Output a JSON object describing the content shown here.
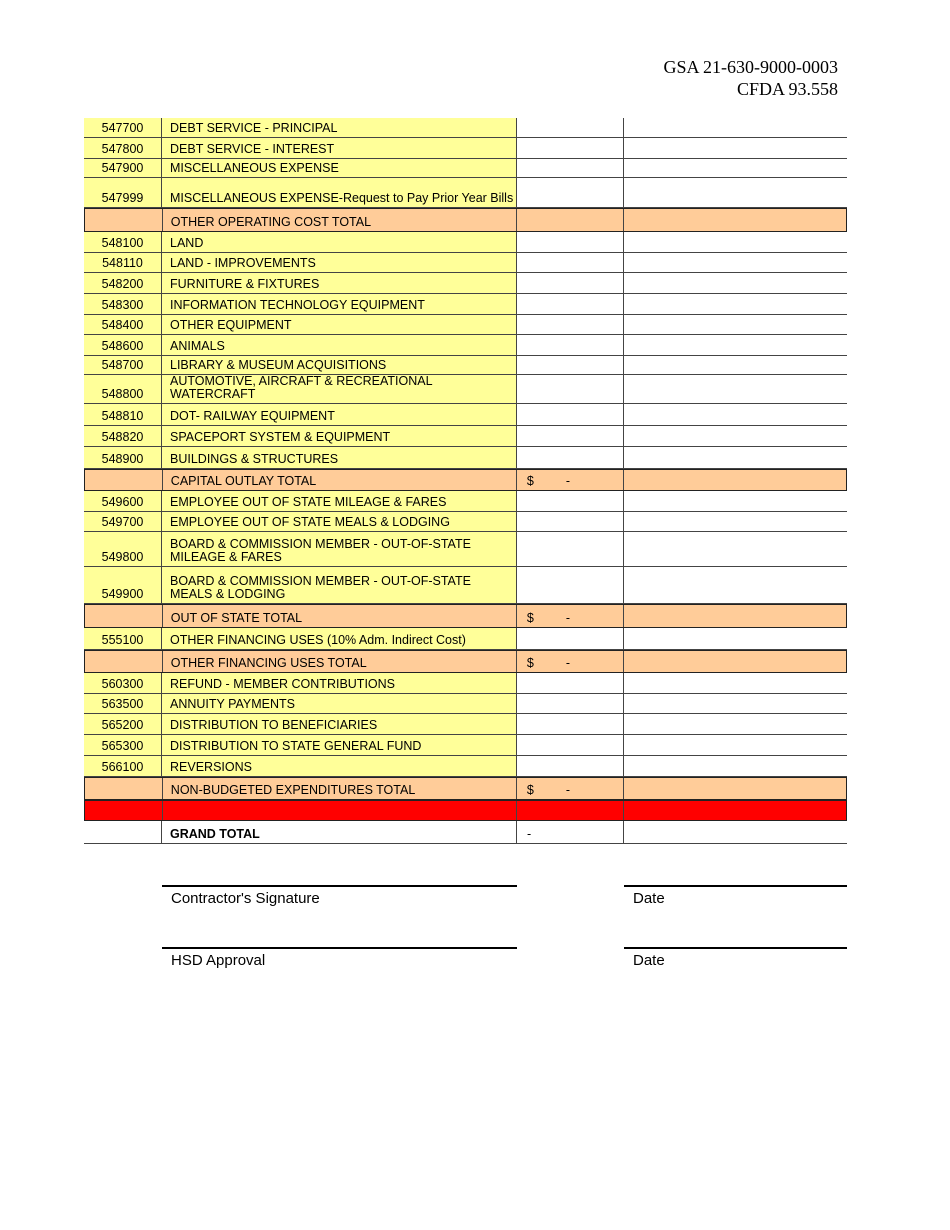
{
  "header": {
    "line1": "GSA 21-630-9000-0003",
    "line2": "CFDA 93.558"
  },
  "rows": [
    {
      "type": "data",
      "code": "547700",
      "label": "DEBT SERVICE - PRINCIPAL"
    },
    {
      "type": "data",
      "code": "547800",
      "label": "DEBT SERVICE - INTEREST"
    },
    {
      "type": "data",
      "code": "547900",
      "label": "MISCELLANEOUS EXPENSE"
    },
    {
      "type": "data",
      "code": "547999",
      "label": "MISCELLANEOUS EXPENSE-Request to Pay Prior Year Bills"
    },
    {
      "type": "total",
      "code": "",
      "label": "OTHER OPERATING COST TOTAL"
    },
    {
      "type": "data",
      "code": "548100",
      "label": "LAND"
    },
    {
      "type": "data",
      "code": "548110",
      "label": "LAND - IMPROVEMENTS"
    },
    {
      "type": "data",
      "code": "548200",
      "label": "FURNITURE & FIXTURES"
    },
    {
      "type": "data",
      "code": "548300",
      "label": "INFORMATION TECHNOLOGY EQUIPMENT"
    },
    {
      "type": "data",
      "code": "548400",
      "label": "OTHER EQUIPMENT"
    },
    {
      "type": "data",
      "code": "548600",
      "label": "ANIMALS"
    },
    {
      "type": "data",
      "code": "548700",
      "label": "LIBRARY & MUSEUM ACQUISITIONS"
    },
    {
      "type": "data",
      "code": "548800",
      "label": "AUTOMOTIVE, AIRCRAFT & RECREATIONAL WATERCRAFT"
    },
    {
      "type": "data",
      "code": "548810",
      "label": "DOT- RAILWAY EQUIPMENT"
    },
    {
      "type": "data",
      "code": "548820",
      "label": "SPACEPORT SYSTEM & EQUIPMENT"
    },
    {
      "type": "data",
      "code": "548900",
      "label": "BUILDINGS & STRUCTURES"
    },
    {
      "type": "total",
      "code": "",
      "label": "CAPITAL OUTLAY TOTAL",
      "currency": "$",
      "amount": "-"
    },
    {
      "type": "data",
      "code": "549600",
      "label": "EMPLOYEE OUT OF STATE MILEAGE & FARES"
    },
    {
      "type": "data",
      "code": "549700",
      "label": "EMPLOYEE OUT OF STATE MEALS & LODGING"
    },
    {
      "type": "data",
      "code": "549800",
      "label": "BOARD & COMMISSION MEMBER - OUT-OF-STATE MILEAGE & FARES"
    },
    {
      "type": "data",
      "code": "549900",
      "label": "BOARD & COMMISSION MEMBER - OUT-OF-STATE MEALS & LODGING"
    },
    {
      "type": "total",
      "code": "",
      "label": "OUT OF STATE TOTAL",
      "currency": "$",
      "amount": "-"
    },
    {
      "type": "data",
      "code": "555100",
      "label": "OTHER FINANCING USES (10% Adm. Indirect Cost)"
    },
    {
      "type": "total",
      "code": "",
      "label": "OTHER FINANCING USES TOTAL",
      "currency": "$",
      "amount": "-"
    },
    {
      "type": "data",
      "code": "560300",
      "label": "REFUND - MEMBER CONTRIBUTIONS"
    },
    {
      "type": "data",
      "code": "563500",
      "label": "ANNUITY PAYMENTS"
    },
    {
      "type": "data",
      "code": "565200",
      "label": "DISTRIBUTION TO BENEFICIARIES"
    },
    {
      "type": "data",
      "code": "565300",
      "label": "DISTRIBUTION TO STATE GENERAL FUND"
    },
    {
      "type": "data",
      "code": "566100",
      "label": "REVERSIONS"
    },
    {
      "type": "total",
      "code": "",
      "label": "NON-BUDGETED EXPENDITURES TOTAL",
      "currency": "$",
      "amount": "-"
    },
    {
      "type": "red",
      "code": "",
      "label": ""
    },
    {
      "type": "grand",
      "code": "",
      "label": "GRAND TOTAL",
      "amount": "-"
    }
  ],
  "signatures": {
    "contractor": "Contractor's Signature",
    "hsd": "HSD Approval",
    "date1": "Date",
    "date2": "Date"
  },
  "colors": {
    "line_item": "#ffff99",
    "total": "#ffcc99",
    "separator": "#ff0000"
  }
}
